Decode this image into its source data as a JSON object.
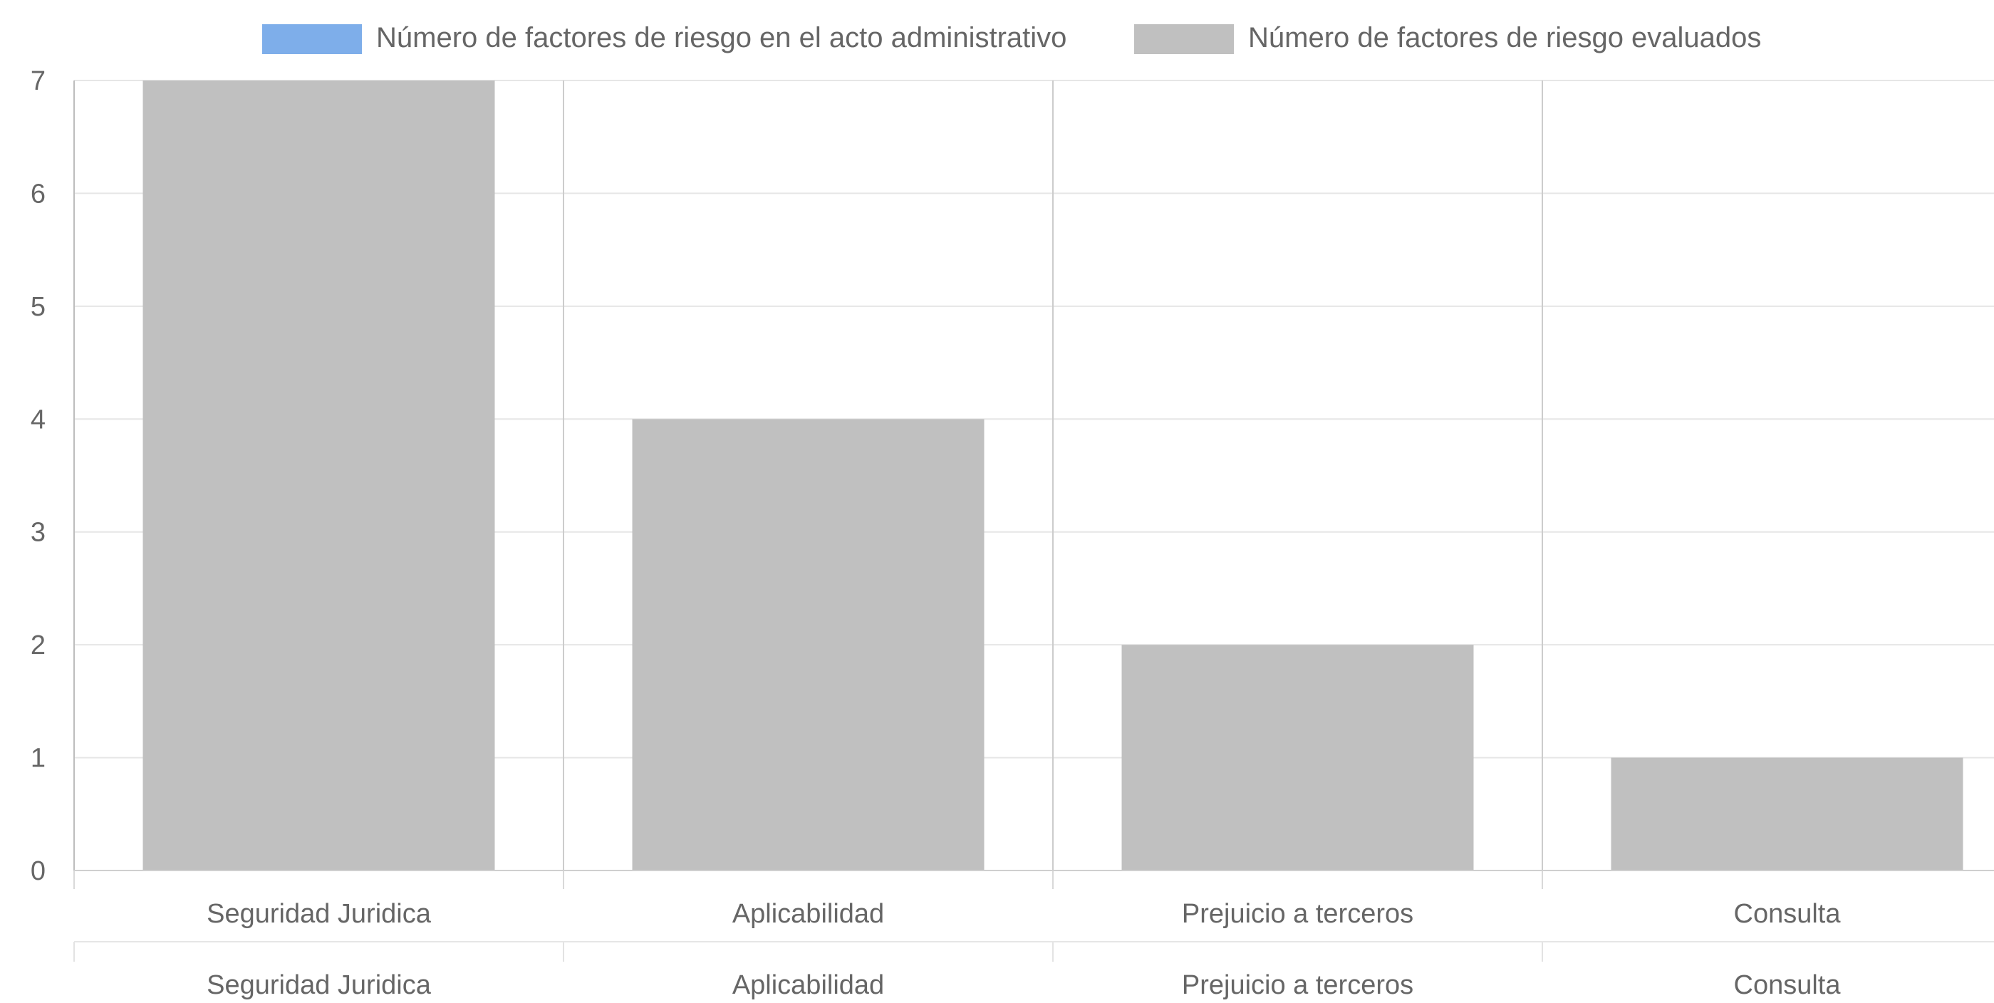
{
  "chart_data": {
    "type": "bar",
    "categories": [
      "Seguridad Juridica",
      "Aplicabilidad",
      "Prejuicio a terceros",
      "Consulta"
    ],
    "secondary_categories": [
      "Seguridad Juridica",
      "Aplicabilidad",
      "Prejuicio a terceros",
      "Consulta"
    ],
    "series": [
      {
        "name": "Número de factores de riesgo en el acto administrativo",
        "values": [
          0,
          0,
          0,
          0
        ],
        "color": "#7eaeea"
      },
      {
        "name": "Número de factores de riesgo evaluados",
        "values": [
          7,
          4,
          2,
          1
        ],
        "color": "#c0c0c0"
      }
    ],
    "ylim": [
      0,
      7
    ],
    "yticks": [
      "0",
      "1",
      "2",
      "3",
      "4",
      "5",
      "6",
      "7"
    ],
    "grid": true,
    "legend_position": "top"
  }
}
